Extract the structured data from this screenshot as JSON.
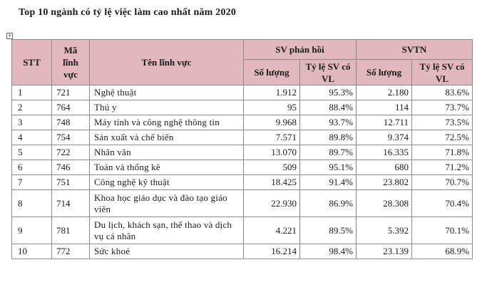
{
  "title": "Top 10 ngành có tỷ lệ việc làm cao nhất năm 2020",
  "anchor_icon": "table-move-handle-icon",
  "header": {
    "stt": "STT",
    "ma_linh_vuc": "Mã lĩnh vực",
    "ten_linh_vuc": "Tên lĩnh vực",
    "sv_phan_hoi": "SV phản hồi",
    "svtn": "SVTN",
    "so_luong": "Số lượng",
    "ty_le": "Tỷ lệ SV có VL"
  },
  "header_bg": "#e2b8bf",
  "rows": [
    {
      "stt": "1",
      "ma": "721",
      "ten": "Nghệ thuật",
      "sl1": "1.912",
      "tl1": "95.3%",
      "sl2": "2.180",
      "tl2": "83.6%"
    },
    {
      "stt": "2",
      "ma": "764",
      "ten": "Thú y",
      "sl1": "95",
      "tl1": "88.4%",
      "sl2": "114",
      "tl2": "73.7%"
    },
    {
      "stt": "3",
      "ma": "748",
      "ten": "Máy tính và công nghệ thông tin",
      "sl1": "9.968",
      "tl1": "93.7%",
      "sl2": "12.711",
      "tl2": "73.5%"
    },
    {
      "stt": "4",
      "ma": "754",
      "ten": "Sản xuất và chế biến",
      "sl1": "7.571",
      "tl1": "89.8%",
      "sl2": "9.374",
      "tl2": "72.5%"
    },
    {
      "stt": "5",
      "ma": "722",
      "ten": "Nhân văn",
      "sl1": "13.070",
      "tl1": "89.7%",
      "sl2": "16.335",
      "tl2": "71.8%"
    },
    {
      "stt": "6",
      "ma": "746",
      "ten": "Toán và thống kê",
      "sl1": "509",
      "tl1": "95.1%",
      "sl2": "680",
      "tl2": "71.2%"
    },
    {
      "stt": "7",
      "ma": "751",
      "ten": "Công nghệ kỹ thuật",
      "sl1": "18.425",
      "tl1": "91.4%",
      "sl2": "23.802",
      "tl2": "70.7%"
    },
    {
      "stt": "8",
      "ma": "714",
      "ten": "Khoa học giáo dục và đào tạo giáo viên",
      "sl1": "22.930",
      "tl1": "86.9%",
      "sl2": "28.308",
      "tl2": "70.4%"
    },
    {
      "stt": "9",
      "ma": "781",
      "ten": "Du lịch, khách sạn, thể thao và dịch vụ cá nhân",
      "sl1": "4.221",
      "tl1": "89.5%",
      "sl2": "5.392",
      "tl2": "70.1%"
    },
    {
      "stt": "10",
      "ma": "772",
      "ten": "Sức khoẻ",
      "sl1": "16.214",
      "tl1": "98.4%",
      "sl2": "23.139",
      "tl2": "68.9%"
    }
  ]
}
